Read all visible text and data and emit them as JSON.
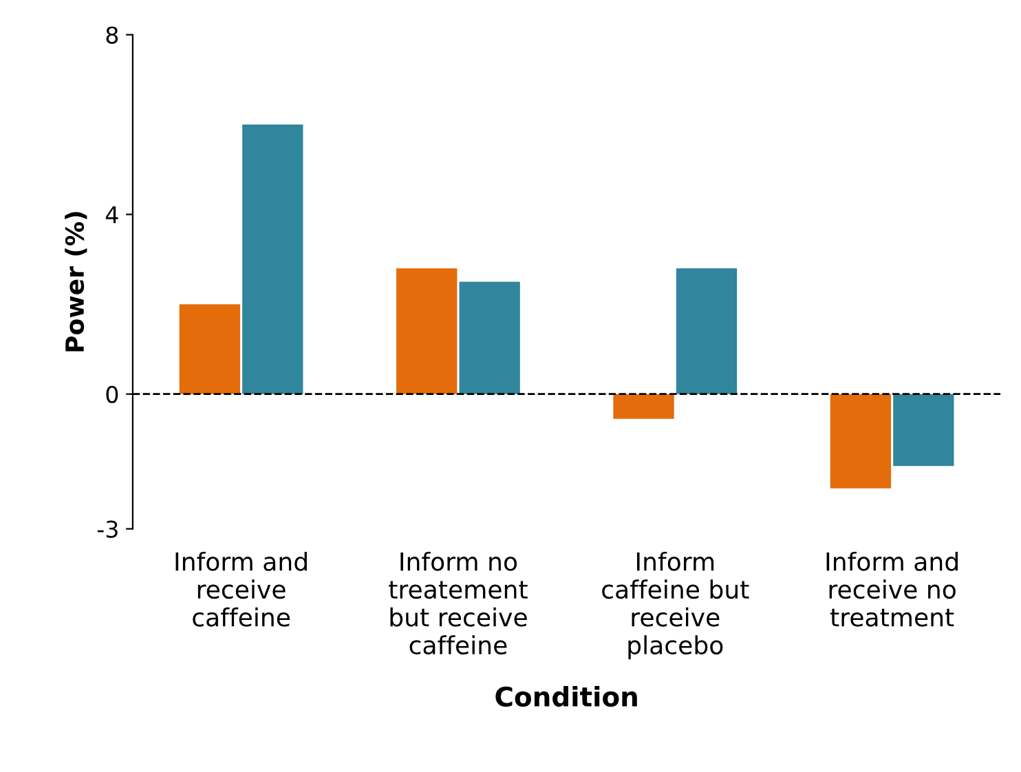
{
  "chart_data": {
    "type": "bar",
    "xlabel": "Condition",
    "ylabel": "Power (%)",
    "categories": [
      "Inform and receive caffeine",
      "Inform no treatement but receive caffeine",
      "Inform caffeine but receive placebo",
      "Inform and receive no treatment"
    ],
    "series": [
      {
        "color": "#e46c0a",
        "values": [
          2.0,
          2.8,
          -0.55,
          -2.1
        ]
      },
      {
        "color": "#31859c",
        "values": [
          6.0,
          2.5,
          2.8,
          -1.6
        ]
      }
    ],
    "ylim": [
      -3,
      8
    ],
    "yticks": [
      -3,
      0,
      4,
      8
    ],
    "grid": false,
    "legend": false,
    "ref_lines": [
      {
        "axis": "y",
        "value": 0,
        "color": "#000000",
        "line_style": "dashed"
      }
    ]
  }
}
